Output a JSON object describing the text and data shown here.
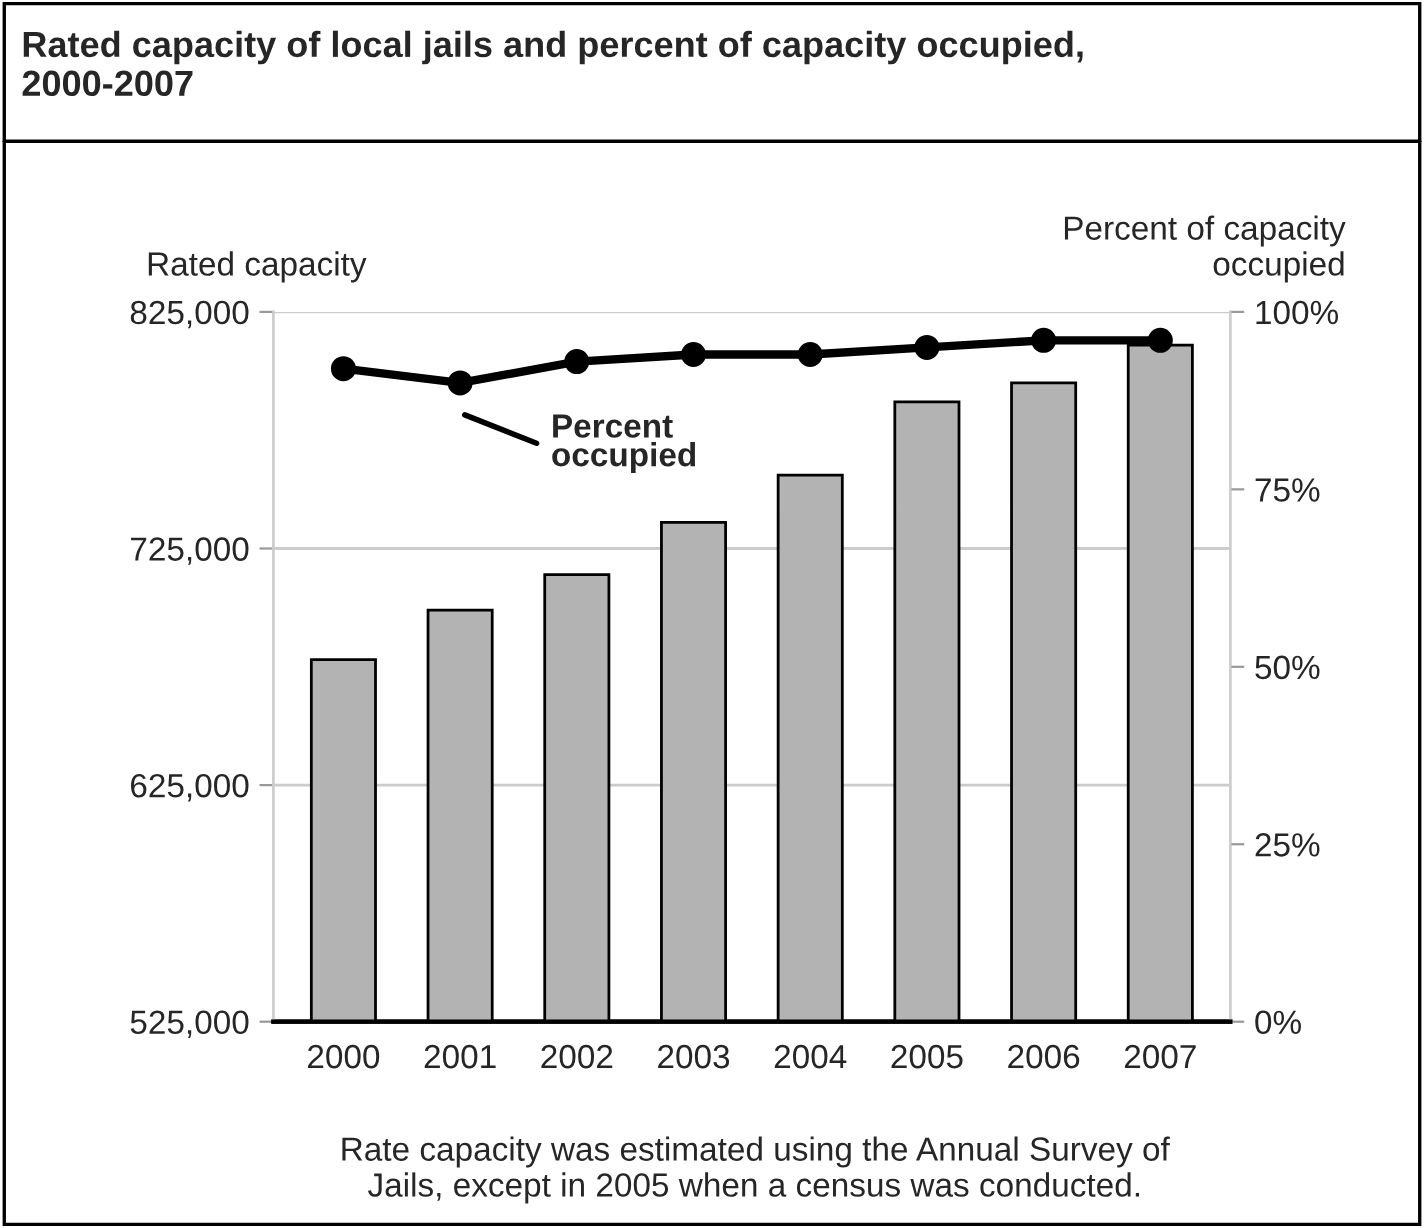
{
  "chart_data": {
    "type": "bar",
    "title": "Rated capacity of local jails and percent of capacity occupied, 2000-2007",
    "ylabel": "Rated capacity",
    "y2label": "Percent of capacity\noccupied",
    "categories": [
      "2000",
      "2001",
      "2002",
      "2003",
      "2004",
      "2005",
      "2006",
      "2007"
    ],
    "series": [
      {
        "color": "#b3b3b3",
        "values": [
          678000,
          699000,
          714000,
          736000,
          756000,
          787000,
          795000,
          811000
        ]
      },
      {
        "type": "line",
        "axis": "y2",
        "color": "#000000",
        "marker": "circle",
        "values": [
          92,
          90,
          93,
          94,
          94,
          95,
          96,
          96
        ]
      }
    ],
    "ylim": [
      525000,
      825000
    ],
    "yticks": [
      {
        "value": 525000,
        "label": "525,000"
      },
      {
        "value": 625000,
        "label": "625,000"
      },
      {
        "value": 725000,
        "label": "725,000"
      },
      {
        "value": 825000,
        "label": "825,000"
      }
    ],
    "y2lim": [
      0,
      100
    ],
    "y2ticks": [
      {
        "value": 0,
        "label": "0%"
      },
      {
        "value": 25,
        "label": "25%"
      },
      {
        "value": 50,
        "label": "50%"
      },
      {
        "value": 75,
        "label": "75%"
      },
      {
        "value": 100,
        "label": "100%"
      }
    ],
    "grid": "y",
    "legend": false,
    "annotations": [
      "Percent\noccupied",
      "Rate capacity was estimated using the Annual Survey of Jails, except in 2005 when a census was conducted."
    ]
  }
}
